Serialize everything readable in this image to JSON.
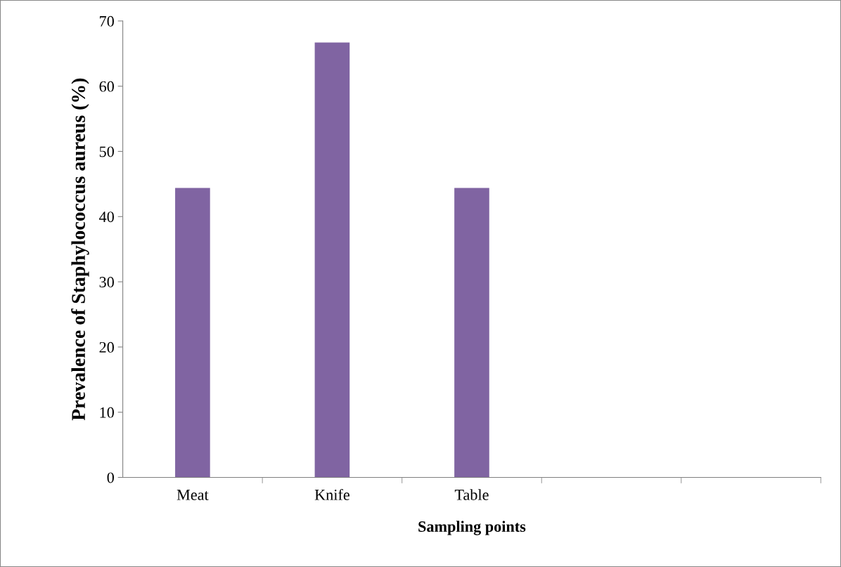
{
  "chart_data": {
    "type": "bar",
    "xlabel": "Sampling points",
    "ylabel": "Prevalence of Staphylococcus aureus (%)",
    "categories": [
      "Meat",
      "Knife",
      "Table",
      null,
      null
    ],
    "values": [
      44.4,
      66.7,
      44.4,
      null,
      null
    ],
    "color": "#8064a2",
    "ylim": [
      0,
      70
    ],
    "yticks": [
      0,
      10,
      20,
      30,
      40,
      50,
      60,
      70
    ],
    "grid": false,
    "legend": false
  }
}
